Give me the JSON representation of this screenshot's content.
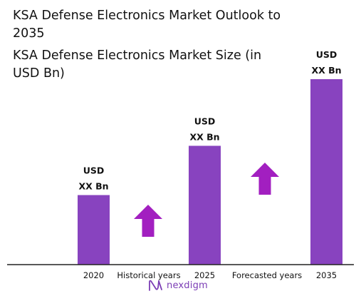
{
  "title": "KSA Defense Electronics Market Outlook to 2035",
  "subtitle": "KSA Defense Electronics Market Size (in USD Bn)",
  "colors": {
    "bar": "#8843bf",
    "arrow": "#a21fc0",
    "axis": "#222222",
    "brand": "#7b3db5"
  },
  "brand": {
    "name": "nexdigm",
    "icon": "nexdigm-logo-icon"
  },
  "chart_data": {
    "type": "bar",
    "title": "KSA Defense Electronics Market Outlook to 2035",
    "subtitle": "KSA Defense Electronics Market Size (in USD Bn)",
    "categories": [
      "2020",
      "2025",
      "2035"
    ],
    "values": [
      24,
      41,
      64
    ],
    "value_note": "relative heights only; no values are printed on the chart",
    "bar_labels": [
      [
        "USD",
        "XX Bn"
      ],
      [
        "USD",
        "XX Bn"
      ],
      [
        "USD",
        "XX Bn"
      ]
    ],
    "period_labels": [
      "Historical years",
      "Forecasted years"
    ],
    "xlabel": "",
    "ylabel": "",
    "ylim": [
      0,
      64
    ],
    "grid": false,
    "legend": "none",
    "annotations": [
      "up-arrow",
      "up-arrow"
    ]
  }
}
